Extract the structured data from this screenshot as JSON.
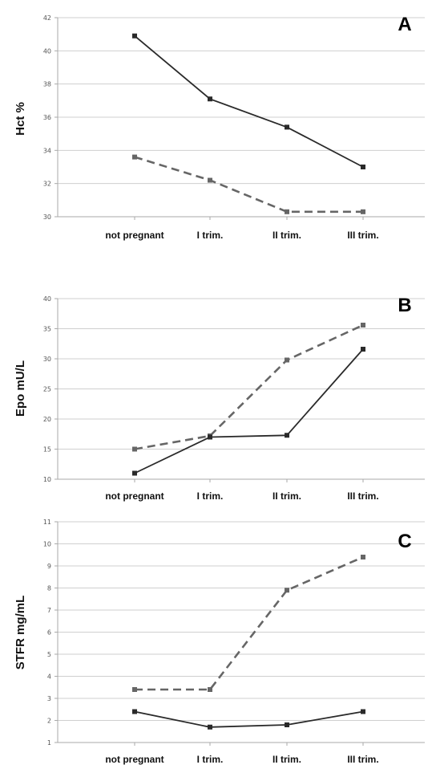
{
  "chart_data": [
    {
      "type": "line",
      "panel_label": "A",
      "ylabel": "Hct %",
      "categories": [
        "not pregnant",
        "I trim.",
        "II trim.",
        "III trim."
      ],
      "yticks": [
        "30",
        "32",
        "34",
        "36",
        "38",
        "40",
        "42"
      ],
      "ylim": [
        30,
        42
      ],
      "grid": true,
      "series": [
        {
          "style": "solid",
          "values": [
            40.9,
            37.1,
            35.4,
            33.0
          ]
        },
        {
          "style": "dashed",
          "values": [
            33.6,
            32.2,
            30.3,
            30.3
          ]
        }
      ]
    },
    {
      "type": "line",
      "panel_label": "B",
      "ylabel": "Epo mU/L",
      "categories": [
        "not pregnant",
        "I trim.",
        "II trim.",
        "III trim."
      ],
      "yticks": [
        "10",
        "15",
        "20",
        "25",
        "30",
        "35",
        "40"
      ],
      "ylim": [
        10,
        40
      ],
      "grid": true,
      "series": [
        {
          "style": "dashed",
          "values": [
            15.0,
            17.2,
            29.8,
            35.6
          ]
        },
        {
          "style": "solid",
          "values": [
            11.0,
            17.0,
            17.3,
            31.6
          ]
        }
      ]
    },
    {
      "type": "line",
      "panel_label": "C",
      "ylabel": "STFR mg/mL",
      "categories": [
        "not pregnant",
        "I trim.",
        "II trim.",
        "III trim."
      ],
      "yticks": [
        "1",
        "2",
        "3",
        "4",
        "5",
        "6",
        "7",
        "8",
        "9",
        "10",
        "11"
      ],
      "ylim": [
        1,
        11
      ],
      "grid": true,
      "series": [
        {
          "style": "dashed",
          "values": [
            3.4,
            3.4,
            7.9,
            9.4
          ]
        },
        {
          "style": "solid",
          "values": [
            2.4,
            1.7,
            1.8,
            2.4
          ]
        }
      ]
    }
  ],
  "colors": {
    "solid_line": "#2a2a2a",
    "dashed_line": "#666666",
    "grid": "#cfcfcf"
  }
}
